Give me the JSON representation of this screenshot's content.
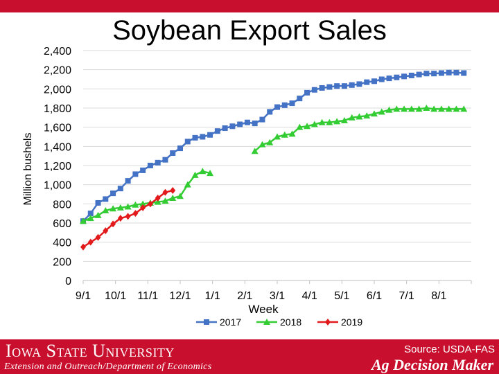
{
  "header": {
    "title": "Soybean Export Sales"
  },
  "footer": {
    "university": "Iowa State University",
    "department": "Extension and Outreach/Department of Economics",
    "source": "Source: USDA-FAS",
    "brand": "Ag Decision Maker"
  },
  "chart_data": {
    "type": "line",
    "title": "",
    "xlabel": "Week",
    "ylabel": "Million bushels",
    "ylim": [
      0,
      2400
    ],
    "yticks": [
      "0",
      "200",
      "400",
      "600",
      "800",
      "1,000",
      "1,200",
      "1,400",
      "1,600",
      "1,800",
      "2,000",
      "2,200",
      "2,400"
    ],
    "xticks": [
      "9/1",
      "10/1",
      "11/1",
      "12/1",
      "1/1",
      "2/1",
      "3/1",
      "4/1",
      "5/1",
      "6/1",
      "7/1",
      "8/1"
    ],
    "xlim": [
      0,
      52
    ],
    "grid": true,
    "legend": "bottom",
    "series": [
      {
        "name": "2017",
        "color": "#4472c4",
        "marker": "square",
        "x": [
          0,
          1,
          2,
          3,
          4,
          5,
          6,
          7,
          8,
          9,
          10,
          11,
          12,
          13,
          14,
          15,
          16,
          17,
          18,
          19,
          20,
          21,
          22,
          23,
          24,
          25,
          26,
          27,
          28,
          29,
          30,
          31,
          32,
          33,
          34,
          35,
          36,
          37,
          38,
          39,
          40,
          41,
          42,
          43,
          44,
          45,
          46,
          47,
          48,
          49,
          50,
          51
        ],
        "values": [
          620,
          700,
          810,
          850,
          910,
          960,
          1040,
          1110,
          1150,
          1200,
          1230,
          1260,
          1330,
          1380,
          1450,
          1490,
          1500,
          1520,
          1560,
          1590,
          1610,
          1630,
          1650,
          1640,
          1680,
          1760,
          1810,
          1830,
          1850,
          1900,
          1960,
          1990,
          2010,
          2020,
          2030,
          2030,
          2040,
          2050,
          2070,
          2080,
          2100,
          2110,
          2120,
          2130,
          2140,
          2150,
          2160,
          2160,
          2165,
          2170,
          2170,
          2165
        ]
      },
      {
        "name": "2018",
        "color": "#33cc33",
        "marker": "triangle",
        "segments": [
          {
            "x": [
              0,
              1,
              2,
              3,
              4,
              5,
              6,
              7,
              8,
              9,
              10,
              11,
              12,
              13,
              14,
              15,
              16,
              17
            ],
            "values": [
              620,
              650,
              680,
              730,
              750,
              760,
              770,
              790,
              800,
              810,
              820,
              830,
              860,
              880,
              1000,
              1100,
              1140,
              1120
            ]
          },
          {
            "x": [
              23,
              24,
              25,
              26,
              27,
              28,
              29,
              30,
              31,
              32,
              33,
              34,
              35,
              36,
              37,
              38,
              39,
              40,
              41,
              42,
              43,
              44,
              45,
              46,
              47,
              48,
              49,
              50,
              51
            ],
            "values": [
              1350,
              1420,
              1440,
              1500,
              1520,
              1530,
              1600,
              1610,
              1630,
              1650,
              1650,
              1660,
              1670,
              1700,
              1710,
              1720,
              1740,
              1760,
              1780,
              1790,
              1790,
              1790,
              1790,
              1800,
              1790,
              1790,
              1790,
              1790,
              1790
            ]
          }
        ]
      },
      {
        "name": "2019",
        "color": "#e31a1c",
        "marker": "diamond",
        "x": [
          0,
          1,
          2,
          3,
          4,
          5,
          6,
          7,
          8,
          9,
          10,
          11,
          12
        ],
        "values": [
          350,
          400,
          450,
          520,
          590,
          650,
          670,
          700,
          760,
          800,
          860,
          920,
          940
        ]
      }
    ]
  }
}
